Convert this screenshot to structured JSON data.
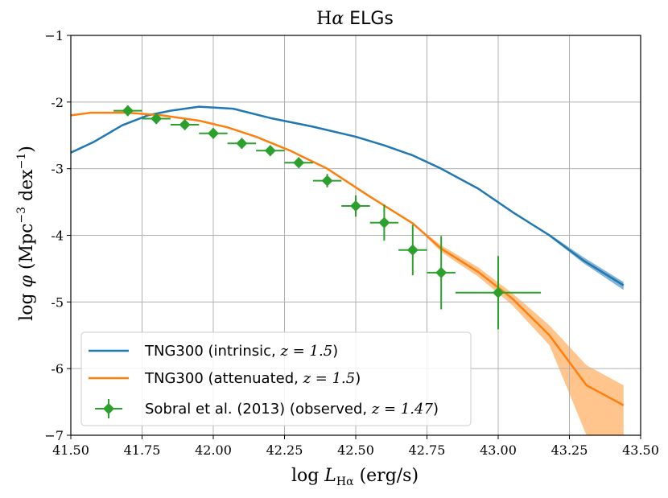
{
  "chart_data": {
    "type": "line",
    "title": "Hα ELGs",
    "xlabel": "log L_Hα (erg/s)",
    "ylabel": "log φ (Mpc⁻³ dex⁻¹)",
    "xlim": [
      41.5,
      43.5
    ],
    "ylim": [
      -7,
      -1
    ],
    "grid": true,
    "xticks": [
      "41.50",
      "41.75",
      "42.00",
      "42.25",
      "42.50",
      "42.75",
      "43.00",
      "43.25",
      "43.50"
    ],
    "yticks": [
      "−1",
      "-2",
      "-3",
      "-4",
      "-5",
      "-6",
      "−7"
    ],
    "colors": {
      "intrinsic": "#1f77b4",
      "attenuated": "#ff7f0e",
      "observed": "#2ca02c",
      "band_attenuated": "#ffbb78"
    },
    "series": [
      {
        "name": "TNG300 (intrinsic, z = 1.5)",
        "x": [
          41.5,
          41.58,
          41.68,
          41.77,
          41.85,
          41.95,
          42.07,
          42.2,
          42.35,
          42.5,
          42.6,
          42.7,
          42.8,
          42.93,
          43.05,
          43.18,
          43.3,
          43.44
        ],
        "y": [
          -2.76,
          -2.6,
          -2.35,
          -2.2,
          -2.13,
          -2.07,
          -2.1,
          -2.24,
          -2.37,
          -2.52,
          -2.65,
          -2.8,
          -3.0,
          -3.3,
          -3.65,
          -4.0,
          -4.38,
          -4.75
        ],
        "upper": [
          -2.76,
          -2.6,
          -2.35,
          -2.2,
          -2.13,
          -2.07,
          -2.1,
          -2.24,
          -2.37,
          -2.52,
          -2.65,
          -2.8,
          -3.0,
          -3.3,
          -3.65,
          -3.98,
          -4.33,
          -4.7
        ],
        "lower": [
          -2.76,
          -2.6,
          -2.35,
          -2.2,
          -2.13,
          -2.07,
          -2.1,
          -2.24,
          -2.37,
          -2.52,
          -2.65,
          -2.8,
          -3.0,
          -3.3,
          -3.65,
          -4.02,
          -4.42,
          -4.82
        ]
      },
      {
        "name": "TNG300 (attenuated, z = 1.5)",
        "x": [
          41.5,
          41.57,
          41.7,
          41.82,
          41.95,
          42.05,
          42.15,
          42.27,
          42.4,
          42.55,
          42.7,
          42.8,
          42.93,
          43.05,
          43.18,
          43.31,
          43.44
        ],
        "y": [
          -2.2,
          -2.16,
          -2.16,
          -2.2,
          -2.28,
          -2.38,
          -2.52,
          -2.73,
          -3.0,
          -3.42,
          -3.82,
          -4.2,
          -4.55,
          -4.95,
          -5.5,
          -6.25,
          -6.55
        ],
        "upper": [
          -2.2,
          -2.16,
          -2.16,
          -2.2,
          -2.28,
          -2.38,
          -2.52,
          -2.73,
          -3.0,
          -3.42,
          -3.82,
          -4.15,
          -4.48,
          -4.87,
          -5.35,
          -5.95,
          -6.25
        ],
        "lower": [
          -2.2,
          -2.16,
          -2.16,
          -2.2,
          -2.28,
          -2.38,
          -2.52,
          -2.73,
          -3.0,
          -3.42,
          -3.82,
          -4.25,
          -4.62,
          -5.05,
          -5.65,
          -7.0,
          -7.0
        ]
      }
    ],
    "observed": {
      "name": "Sobral et al. (2013) (observed, z = 1.47)",
      "x": [
        41.7,
        41.8,
        41.9,
        42.0,
        42.1,
        42.2,
        42.3,
        42.4,
        42.5,
        42.6,
        42.7,
        42.8,
        43.0
      ],
      "y": [
        -2.13,
        -2.25,
        -2.34,
        -2.47,
        -2.62,
        -2.73,
        -2.91,
        -3.18,
        -3.56,
        -3.81,
        -4.22,
        -4.56,
        -4.86
      ],
      "xerr": [
        0.05,
        0.05,
        0.05,
        0.05,
        0.05,
        0.05,
        0.05,
        0.05,
        0.05,
        0.05,
        0.05,
        0.05,
        0.15
      ],
      "yerr": [
        0.08,
        0.08,
        0.08,
        0.08,
        0.08,
        0.08,
        0.08,
        0.1,
        0.16,
        0.27,
        0.38,
        0.55,
        0.55
      ]
    },
    "legend": {
      "location": "lower-left",
      "labels": [
        {
          "text": "TNG300 (intrinsic, ",
          "math": "z = 1.5",
          "close": ")"
        },
        {
          "text": "TNG300 (attenuated, ",
          "math": "z = 1.5",
          "close": ")"
        },
        {
          "text": "Sobral et al. (2013) (observed, ",
          "math": "z = 1.47",
          "close": ")"
        }
      ]
    }
  }
}
